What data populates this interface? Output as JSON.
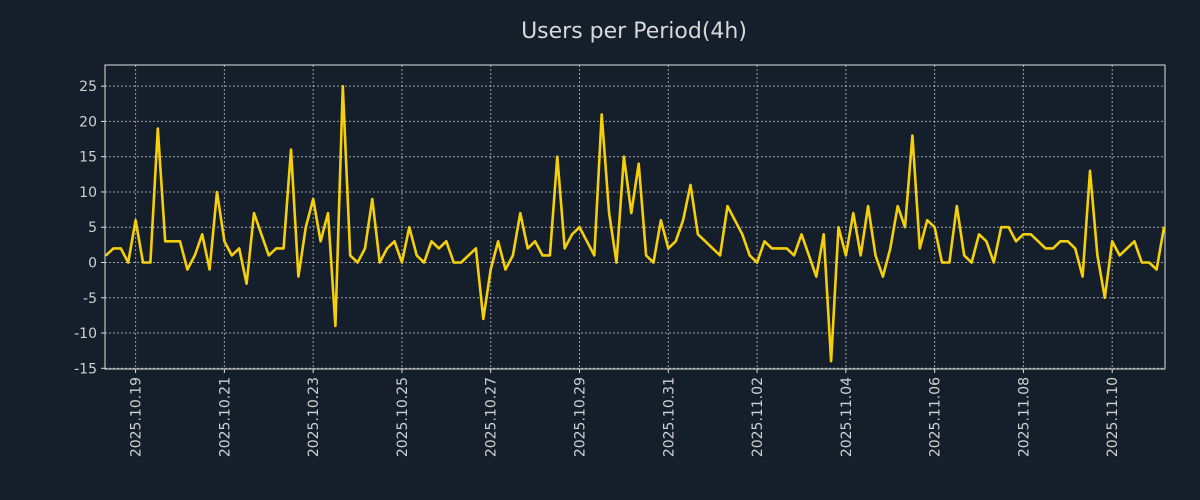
{
  "chart_data": {
    "type": "line",
    "title": "Users per Period(4h)",
    "xlabel": "",
    "ylabel": "",
    "ylim": [
      -15.1,
      28
    ],
    "xlim": [
      0,
      143
    ],
    "grid": true,
    "yticks": [
      -15,
      -10,
      -5,
      0,
      5,
      10,
      15,
      20,
      25
    ],
    "xticks": [
      {
        "index": 4,
        "label": "2025.10.19"
      },
      {
        "index": 16,
        "label": "2025.10.21"
      },
      {
        "index": 28,
        "label": "2025.10.23"
      },
      {
        "index": 40,
        "label": "2025.10.25"
      },
      {
        "index": 52,
        "label": "2025.10.27"
      },
      {
        "index": 64,
        "label": "2025.10.29"
      },
      {
        "index": 76,
        "label": "2025.10.31"
      },
      {
        "index": 88,
        "label": "2025.11.02"
      },
      {
        "index": 100,
        "label": "2025.11.04"
      },
      {
        "index": 112,
        "label": "2025.11.06"
      },
      {
        "index": 124,
        "label": "2025.11.08"
      },
      {
        "index": 136,
        "label": "2025.11.10"
      }
    ],
    "series": [
      {
        "name": "Users",
        "color": "#f5cf0a",
        "values": [
          1,
          2,
          2,
          0,
          6,
          0,
          0,
          19,
          3,
          3,
          3,
          -1,
          1,
          4,
          -1,
          10,
          3,
          1,
          2,
          -3,
          7,
          4,
          1,
          2,
          2,
          16,
          -2,
          5,
          9,
          3,
          7,
          -9,
          25,
          1,
          0,
          2,
          9,
          0,
          2,
          3,
          0,
          5,
          1,
          0,
          3,
          2,
          3,
          0,
          0,
          1,
          2,
          -8,
          -1,
          3,
          -1,
          1,
          7,
          2,
          3,
          1,
          1,
          15,
          2,
          4,
          5,
          3,
          1,
          21,
          7,
          0,
          15,
          7,
          14,
          1,
          0,
          6,
          2,
          3,
          6,
          11,
          4,
          3,
          2,
          1,
          8,
          6,
          4,
          1,
          0,
          3,
          2,
          2,
          2,
          1,
          4,
          1,
          -2,
          4,
          -14,
          5,
          1,
          7,
          1,
          8,
          1,
          -2,
          2,
          8,
          5,
          18,
          2,
          6,
          5,
          0,
          0,
          8,
          1,
          0,
          4,
          3,
          0,
          5,
          5,
          3,
          4,
          4,
          3,
          2,
          2,
          3,
          3,
          2,
          -2,
          13,
          1,
          -5,
          3,
          1,
          2,
          3,
          0,
          0,
          -1,
          5
        ]
      }
    ]
  },
  "colors": {
    "background": "#151f2c",
    "line": "#f5cf0a",
    "text": "#d0d0d0",
    "grid": "#c8c8c8"
  }
}
